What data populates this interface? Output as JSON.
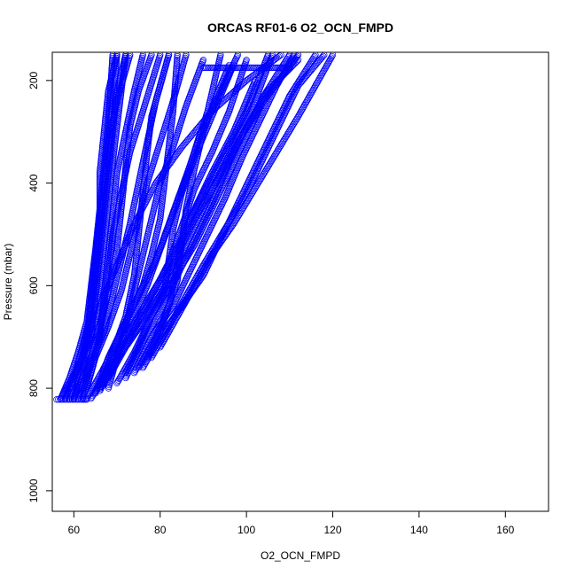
{
  "chart_data": {
    "type": "scatter",
    "title": "ORCAS RF01-6 O2_OCN_FMPD",
    "xlabel": "O2_OCN_FMPD",
    "ylabel": "Pressure (mbar)",
    "xlim": [
      55,
      170
    ],
    "ylim": [
      1040,
      145
    ],
    "y_reversed": true,
    "grid": false,
    "marker": "open-circle",
    "color": "#0000ff",
    "x_ticks": [
      60,
      80,
      100,
      120,
      140,
      160
    ],
    "y_ticks": [
      200,
      400,
      600,
      800,
      1000
    ],
    "profiles": [
      {
        "x": [
          58,
          60,
          63,
          66,
          70,
          74,
          79,
          85,
          92,
          100,
          108
        ],
        "y": [
          820,
          780,
          720,
          640,
          560,
          480,
          400,
          330,
          260,
          200,
          150
        ]
      },
      {
        "x": [
          57,
          59,
          62,
          64,
          66,
          67,
          68,
          69,
          70,
          71,
          72
        ],
        "y": [
          820,
          790,
          740,
          680,
          600,
          520,
          440,
          360,
          290,
          220,
          150
        ]
      },
      {
        "x": [
          58,
          60,
          62,
          64,
          65,
          66,
          67,
          68,
          69,
          70
        ],
        "y": [
          820,
          780,
          720,
          650,
          580,
          500,
          420,
          330,
          250,
          150
        ]
      },
      {
        "x": [
          60,
          62,
          64,
          65,
          66,
          67,
          68,
          69,
          70,
          72
        ],
        "y": [
          820,
          760,
          700,
          620,
          540,
          460,
          380,
          300,
          220,
          150
        ]
      },
      {
        "x": [
          59,
          61,
          63,
          64,
          65,
          66,
          66,
          67,
          68,
          70
        ],
        "y": [
          820,
          770,
          700,
          620,
          540,
          460,
          380,
          300,
          220,
          150
        ]
      },
      {
        "x": [
          60,
          63,
          66,
          68,
          70,
          71,
          72,
          73,
          75,
          78
        ],
        "y": [
          820,
          760,
          690,
          610,
          530,
          450,
          370,
          290,
          220,
          150
        ]
      },
      {
        "x": [
          62,
          64,
          66,
          67,
          68,
          69,
          70,
          72,
          74,
          76
        ],
        "y": [
          820,
          770,
          700,
          620,
          540,
          460,
          380,
          300,
          220,
          150
        ]
      },
      {
        "x": [
          63,
          67,
          71,
          75,
          79,
          82,
          85,
          88,
          91,
          94
        ],
        "y": [
          820,
          760,
          690,
          620,
          550,
          480,
          410,
          340,
          260,
          150
        ]
      },
      {
        "x": [
          64,
          68,
          72,
          77,
          82,
          86,
          90,
          95,
          100,
          105
        ],
        "y": [
          820,
          760,
          700,
          630,
          560,
          490,
          420,
          340,
          260,
          150
        ]
      },
      {
        "x": [
          65,
          68,
          72,
          76,
          78,
          80,
          81,
          82,
          83,
          84
        ],
        "y": [
          810,
          740,
          670,
          600,
          540,
          470,
          400,
          330,
          260,
          150
        ]
      },
      {
        "x": [
          66,
          70,
          75,
          80,
          84,
          88,
          93,
          98,
          104,
          112
        ],
        "y": [
          800,
          740,
          680,
          610,
          540,
          470,
          400,
          320,
          240,
          150
        ]
      },
      {
        "x": [
          67,
          71,
          74,
          77,
          80,
          83,
          86,
          89,
          93,
          98
        ],
        "y": [
          790,
          720,
          660,
          600,
          530,
          460,
          390,
          310,
          240,
          150
        ]
      },
      {
        "x": [
          66,
          69,
          72,
          74,
          75,
          76,
          77,
          78,
          80,
          82
        ],
        "y": [
          800,
          730,
          660,
          580,
          500,
          420,
          340,
          270,
          210,
          150
        ]
      },
      {
        "x": [
          68,
          72,
          77,
          82,
          86,
          90,
          94,
          98,
          102,
          106
        ],
        "y": [
          780,
          720,
          660,
          590,
          520,
          450,
          380,
          310,
          240,
          150
        ]
      },
      {
        "x": [
          70,
          74,
          78,
          83,
          88,
          92,
          96,
          100,
          104,
          110
        ],
        "y": [
          790,
          730,
          660,
          590,
          520,
          450,
          380,
          310,
          230,
          150
        ]
      },
      {
        "x": [
          72,
          76,
          80,
          84,
          88,
          92,
          96,
          100,
          105,
          112
        ],
        "y": [
          780,
          710,
          650,
          580,
          510,
          440,
          360,
          290,
          220,
          160
        ]
      },
      {
        "x": [
          74,
          78,
          83,
          87,
          91,
          95,
          99,
          103,
          107,
          111
        ],
        "y": [
          770,
          700,
          640,
          570,
          500,
          430,
          350,
          280,
          210,
          150
        ]
      },
      {
        "x": [
          75,
          79,
          82,
          84,
          85,
          86,
          88,
          90,
          93,
          96
        ],
        "y": [
          760,
          700,
          640,
          590,
          520,
          450,
          370,
          300,
          230,
          170
        ]
      },
      {
        "x": [
          76,
          80,
          85,
          90,
          94,
          98,
          102,
          106,
          110,
          116
        ],
        "y": [
          760,
          700,
          640,
          580,
          510,
          440,
          370,
          300,
          230,
          150
        ]
      },
      {
        "x": [
          78,
          82,
          86,
          90,
          95,
          100,
          104,
          108,
          112,
          118
        ],
        "y": [
          740,
          680,
          620,
          560,
          490,
          420,
          350,
          280,
          210,
          150
        ]
      },
      {
        "x": [
          80,
          84,
          88,
          92,
          97,
          102,
          107,
          112,
          116,
          120
        ],
        "y": [
          720,
          660,
          600,
          540,
          480,
          410,
          340,
          270,
          210,
          150
        ]
      },
      {
        "x": [
          60,
          62,
          63,
          64,
          65,
          66,
          67,
          68,
          70,
          73
        ],
        "y": [
          820,
          760,
          700,
          630,
          560,
          480,
          400,
          320,
          240,
          150
        ]
      },
      {
        "x": [
          61,
          63,
          65,
          67,
          68,
          69,
          71,
          73,
          76,
          80
        ],
        "y": [
          820,
          770,
          710,
          640,
          570,
          500,
          420,
          340,
          260,
          150
        ]
      },
      {
        "x": [
          57,
          59,
          61,
          63,
          64,
          65,
          66,
          67,
          68,
          69
        ],
        "y": [
          820,
          780,
          730,
          670,
          600,
          530,
          450,
          370,
          280,
          150
        ]
      },
      {
        "x": [
          62,
          64,
          67,
          69,
          71,
          73,
          75,
          77,
          79,
          82
        ],
        "y": [
          810,
          750,
          690,
          620,
          550,
          480,
          400,
          320,
          240,
          150
        ]
      },
      {
        "x": [
          63,
          65,
          68,
          71,
          73,
          75,
          77,
          80,
          83,
          86
        ],
        "y": [
          800,
          740,
          680,
          610,
          540,
          470,
          400,
          320,
          240,
          150
        ]
      },
      {
        "x": [
          66,
          70,
          74,
          78,
          82,
          85,
          88,
          92,
          96,
          100
        ],
        "y": [
          805,
          745,
          685,
          620,
          555,
          485,
          410,
          340,
          260,
          160
        ]
      },
      {
        "x": [
          68,
          70,
          72,
          74,
          76,
          78,
          80,
          83,
          86,
          90
        ],
        "y": [
          800,
          740,
          680,
          610,
          540,
          470,
          400,
          330,
          250,
          160
        ]
      },
      {
        "x": [
          77,
          80,
          82,
          83,
          84,
          85,
          88,
          92,
          97,
          102
        ],
        "y": [
          740,
          690,
          640,
          600,
          560,
          510,
          450,
          380,
          300,
          200
        ]
      },
      {
        "x": [
          72,
          75,
          78,
          81,
          82,
          83,
          85,
          88,
          92,
          97
        ],
        "y": [
          770,
          720,
          660,
          610,
          550,
          490,
          420,
          350,
          270,
          170
        ]
      },
      {
        "x": [
          90,
          94,
          98,
          102,
          106,
          110
        ],
        "y": [
          175,
          175,
          175,
          175,
          175,
          175
        ]
      },
      {
        "x": [
          56,
          58,
          60,
          62,
          63
        ],
        "y": [
          822,
          822,
          822,
          822,
          822
        ]
      }
    ]
  }
}
